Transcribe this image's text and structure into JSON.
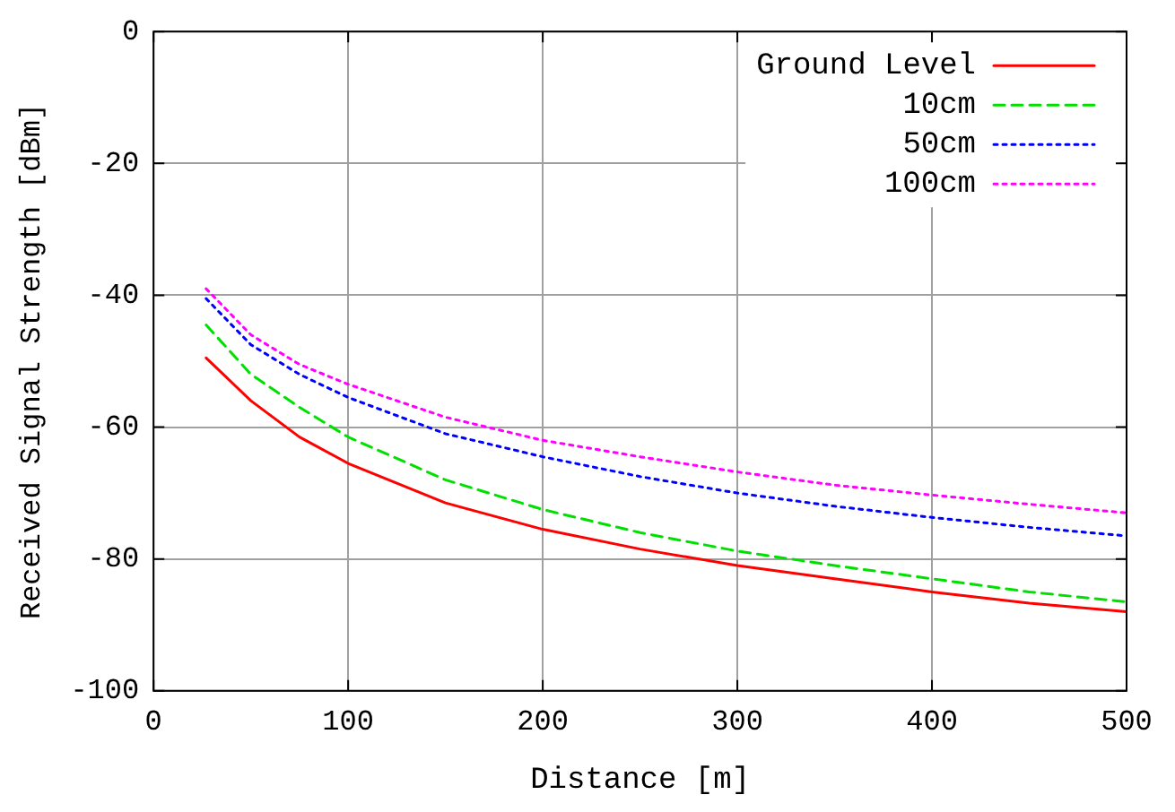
{
  "chart_data": {
    "type": "line",
    "xlabel": "Distance [m]",
    "ylabel": "Received Signal Strength [dBm]",
    "x": [
      27,
      50,
      75,
      100,
      150,
      200,
      250,
      300,
      350,
      400,
      450,
      500
    ],
    "series": [
      {
        "name": "Ground Level",
        "color": "#ff0000",
        "line_style": "solid",
        "values": [
          -49.5,
          -56,
          -61.5,
          -65.5,
          -71.5,
          -75.5,
          -78.5,
          -81,
          -83,
          -85,
          -86.7,
          -88
        ]
      },
      {
        "name": "10cm",
        "color": "#00e000",
        "line_style": "dashed",
        "values": [
          -44.5,
          -52,
          -57,
          -61.5,
          -68,
          -72.5,
          -76,
          -78.8,
          -81,
          -83,
          -85,
          -86.5
        ]
      },
      {
        "name": "50cm",
        "color": "#0000ff",
        "line_style": "dotted",
        "values": [
          -40.5,
          -47.5,
          -52,
          -55.5,
          -61,
          -64.5,
          -67.5,
          -70,
          -72,
          -73.7,
          -75.2,
          -76.5
        ]
      },
      {
        "name": "100cm",
        "color": "#ff00ff",
        "line_style": "dotted",
        "values": [
          -39,
          -46,
          -50.5,
          -53.5,
          -58.5,
          -62,
          -64.5,
          -66.8,
          -68.8,
          -70.3,
          -71.7,
          -73
        ]
      }
    ],
    "xlim": [
      0,
      500
    ],
    "xticks": [
      0,
      100,
      200,
      300,
      400,
      500
    ],
    "ylim": [
      -100,
      0
    ],
    "yticks": [
      -100,
      -80,
      -60,
      -40,
      -20,
      0
    ],
    "grid": true,
    "legend": "top right",
    "marker": "none"
  }
}
